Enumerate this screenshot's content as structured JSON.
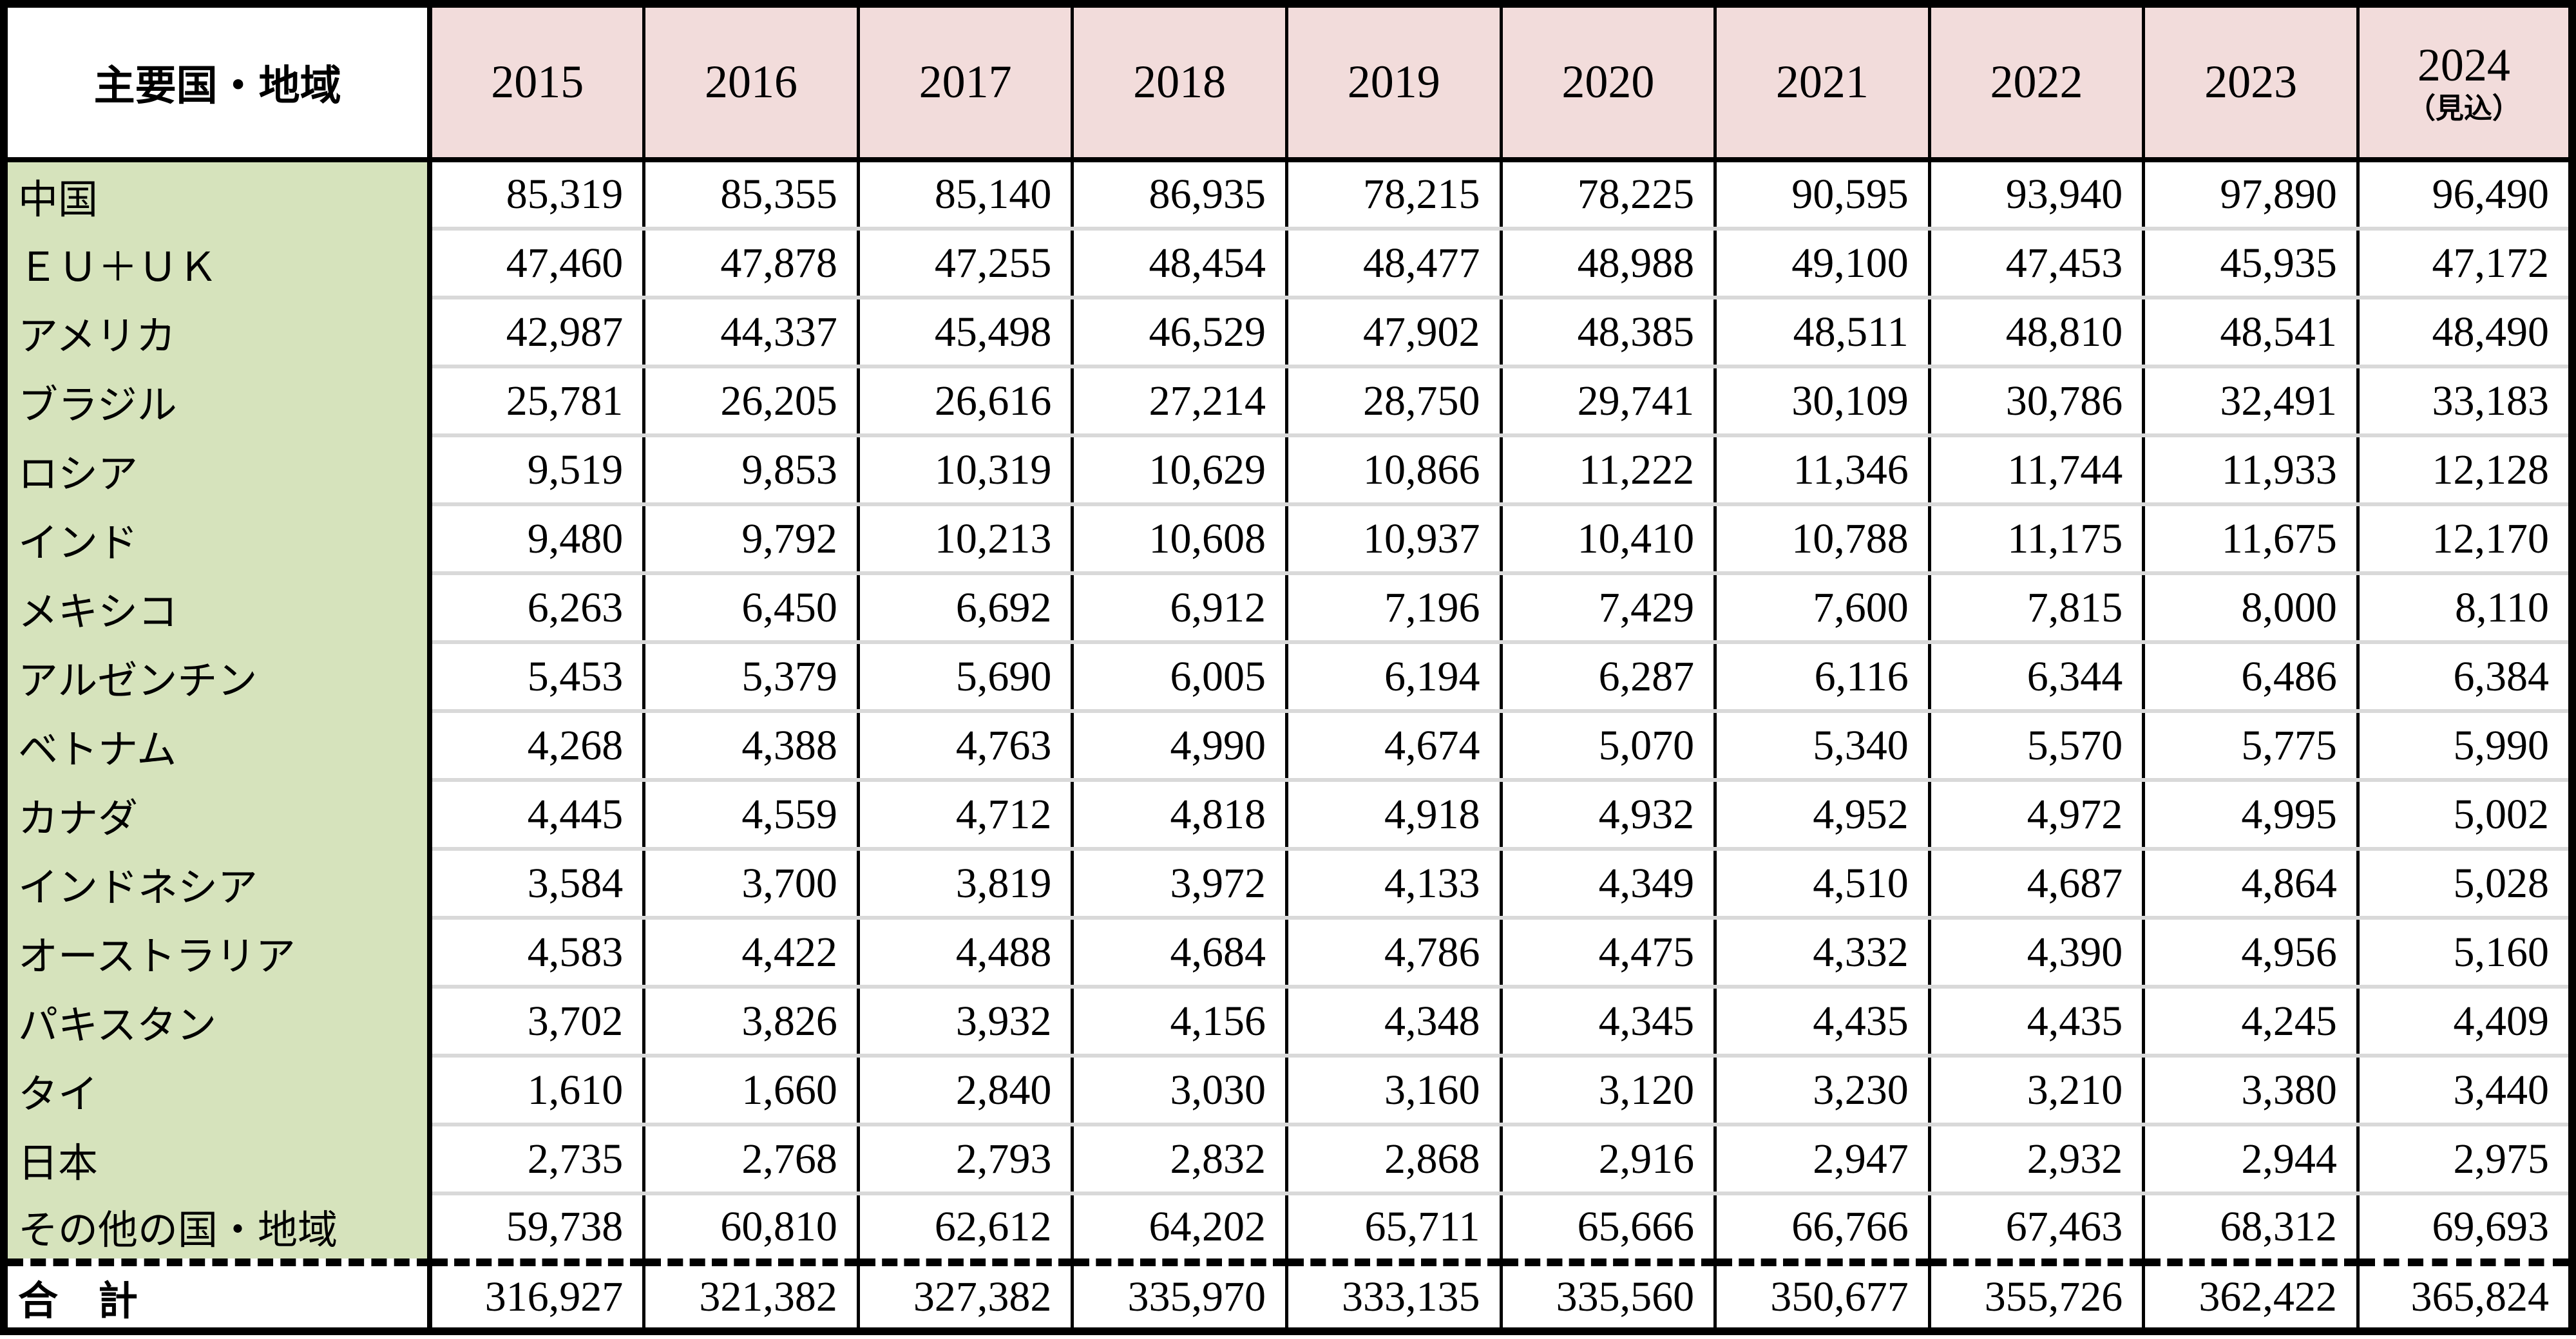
{
  "table": {
    "header": {
      "label": "主要国・地域",
      "years": [
        "2015",
        "2016",
        "2017",
        "2018",
        "2019",
        "2020",
        "2021",
        "2022",
        "2023",
        "2024"
      ],
      "forecast_note": "（見込）"
    },
    "rows": [
      {
        "name": "中国",
        "values": [
          "85,319",
          "85,355",
          "85,140",
          "86,935",
          "78,215",
          "78,225",
          "90,595",
          "93,940",
          "97,890",
          "96,490"
        ]
      },
      {
        "name": "ＥＵ＋ＵＫ",
        "values": [
          "47,460",
          "47,878",
          "47,255",
          "48,454",
          "48,477",
          "48,988",
          "49,100",
          "47,453",
          "45,935",
          "47,172"
        ]
      },
      {
        "name": "アメリカ",
        "values": [
          "42,987",
          "44,337",
          "45,498",
          "46,529",
          "47,902",
          "48,385",
          "48,511",
          "48,810",
          "48,541",
          "48,490"
        ]
      },
      {
        "name": "ブラジル",
        "values": [
          "25,781",
          "26,205",
          "26,616",
          "27,214",
          "28,750",
          "29,741",
          "30,109",
          "30,786",
          "32,491",
          "33,183"
        ]
      },
      {
        "name": "ロシア",
        "values": [
          "9,519",
          "9,853",
          "10,319",
          "10,629",
          "10,866",
          "11,222",
          "11,346",
          "11,744",
          "11,933",
          "12,128"
        ]
      },
      {
        "name": "インド",
        "values": [
          "9,480",
          "9,792",
          "10,213",
          "10,608",
          "10,937",
          "10,410",
          "10,788",
          "11,175",
          "11,675",
          "12,170"
        ]
      },
      {
        "name": "メキシコ",
        "values": [
          "6,263",
          "6,450",
          "6,692",
          "6,912",
          "7,196",
          "7,429",
          "7,600",
          "7,815",
          "8,000",
          "8,110"
        ]
      },
      {
        "name": "アルゼンチン",
        "values": [
          "5,453",
          "5,379",
          "5,690",
          "6,005",
          "6,194",
          "6,287",
          "6,116",
          "6,344",
          "6,486",
          "6,384"
        ]
      },
      {
        "name": "ベトナム",
        "values": [
          "4,268",
          "4,388",
          "4,763",
          "4,990",
          "4,674",
          "5,070",
          "5,340",
          "5,570",
          "5,775",
          "5,990"
        ]
      },
      {
        "name": "カナダ",
        "values": [
          "4,445",
          "4,559",
          "4,712",
          "4,818",
          "4,918",
          "4,932",
          "4,952",
          "4,972",
          "4,995",
          "5,002"
        ]
      },
      {
        "name": "インドネシア",
        "values": [
          "3,584",
          "3,700",
          "3,819",
          "3,972",
          "4,133",
          "4,349",
          "4,510",
          "4,687",
          "4,864",
          "5,028"
        ]
      },
      {
        "name": "オーストラリア",
        "values": [
          "4,583",
          "4,422",
          "4,488",
          "4,684",
          "4,786",
          "4,475",
          "4,332",
          "4,390",
          "4,956",
          "5,160"
        ]
      },
      {
        "name": "パキスタン",
        "values": [
          "3,702",
          "3,826",
          "3,932",
          "4,156",
          "4,348",
          "4,345",
          "4,435",
          "4,435",
          "4,245",
          "4,409"
        ]
      },
      {
        "name": "タイ",
        "values": [
          "1,610",
          "1,660",
          "2,840",
          "3,030",
          "3,160",
          "3,120",
          "3,230",
          "3,210",
          "3,380",
          "3,440"
        ]
      },
      {
        "name": "日本",
        "values": [
          "2,735",
          "2,768",
          "2,793",
          "2,832",
          "2,868",
          "2,916",
          "2,947",
          "2,932",
          "2,944",
          "2,975"
        ]
      },
      {
        "name": "その他の国・地域",
        "values": [
          "59,738",
          "60,810",
          "62,612",
          "64,202",
          "65,711",
          "65,666",
          "66,766",
          "67,463",
          "68,312",
          "69,693"
        ]
      },
      {
        "name": "合　計",
        "total": true,
        "values": [
          "316,927",
          "321,382",
          "327,382",
          "335,970",
          "333,135",
          "335,560",
          "350,677",
          "355,726",
          "362,422",
          "365,824"
        ]
      }
    ],
    "colors": {
      "border": "#000000",
      "year_header_bg": "#F2DCDB",
      "country_column_bg": "#D6E3BC",
      "row_separator": "#D9D9D9"
    }
  }
}
